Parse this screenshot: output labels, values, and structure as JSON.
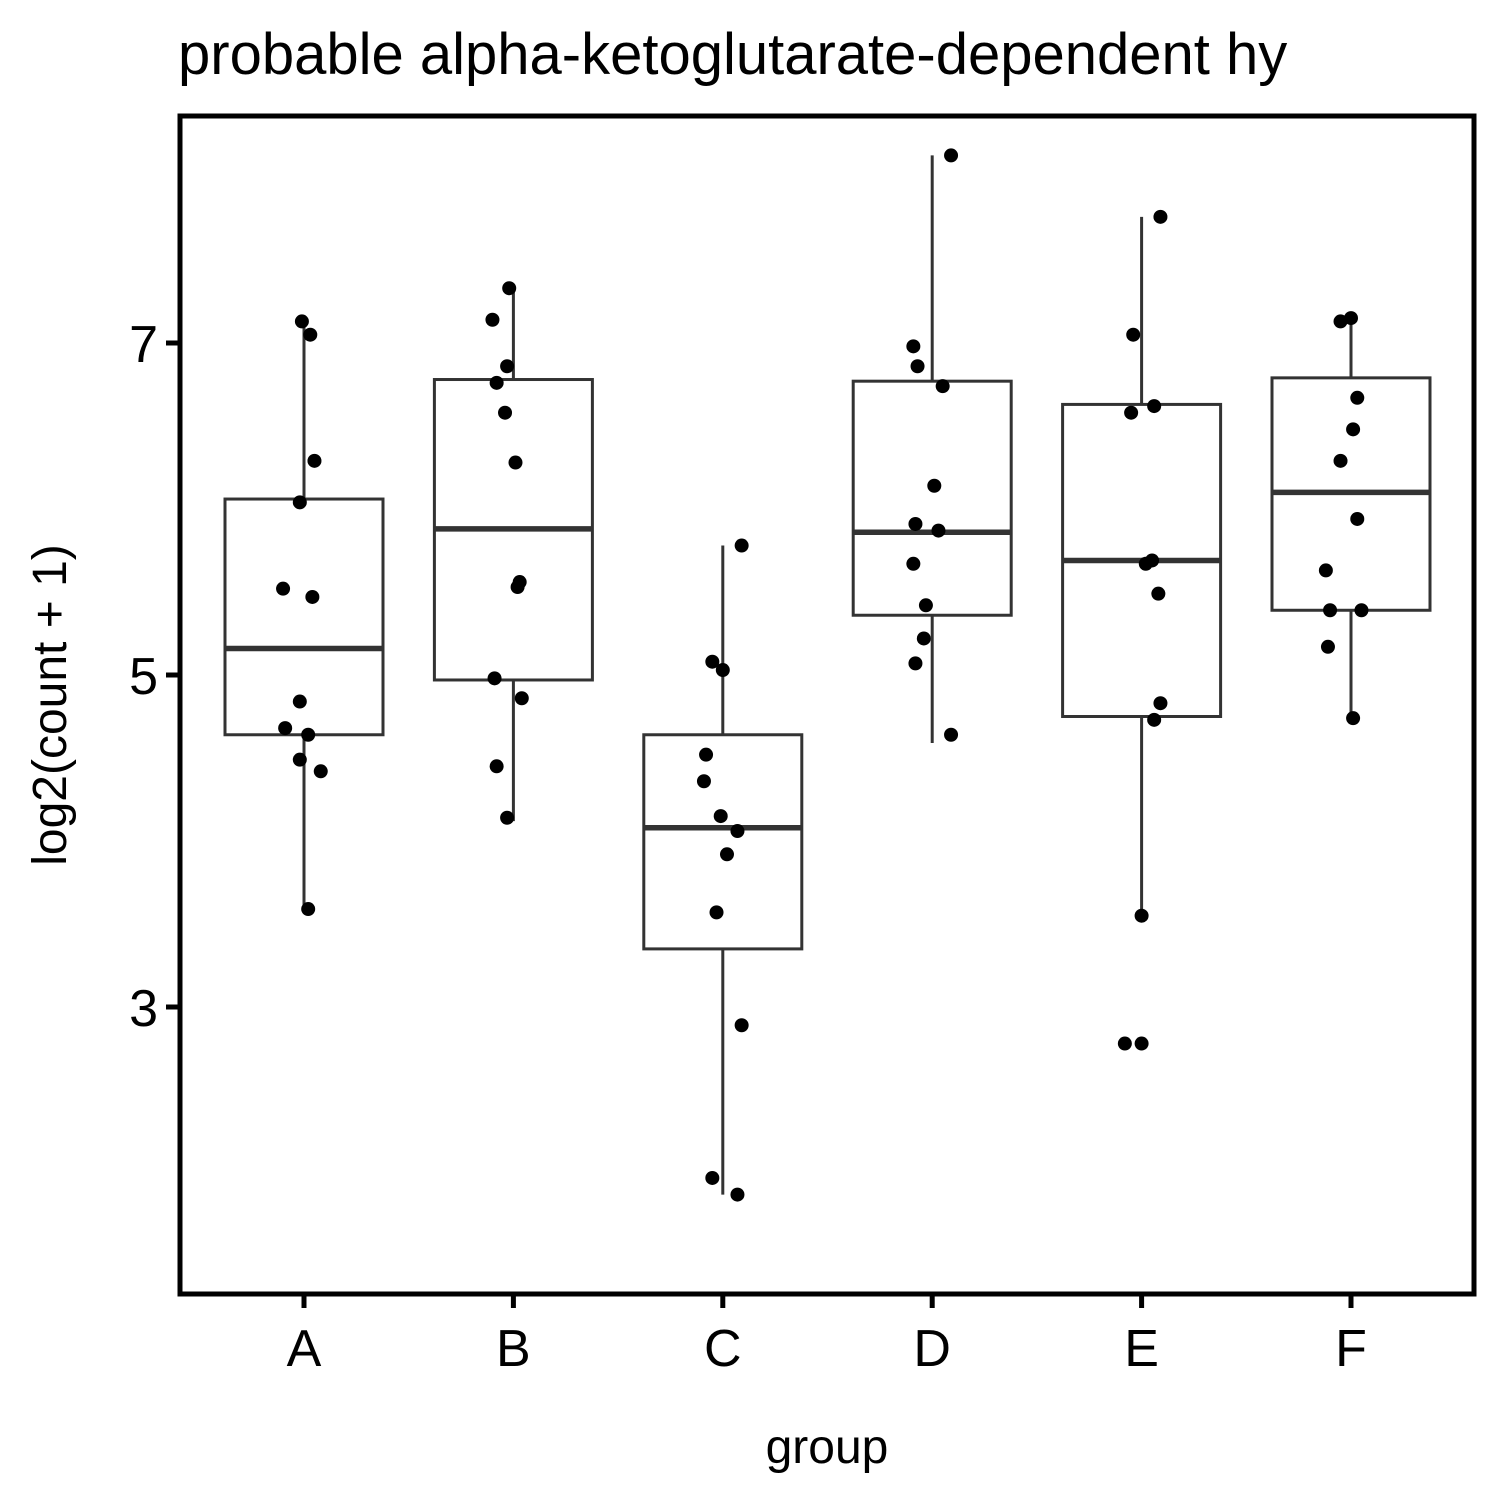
{
  "chart_data": {
    "type": "box",
    "title": "probable alpha-ketoglutarate-dependent hy",
    "xlabel": "group",
    "ylabel": "log2(count + 1)",
    "ylim": [
      1.9,
      8.6
    ],
    "yticks": [
      3,
      5,
      7
    ],
    "ytick_labels": [
      "3",
      "5",
      "7"
    ],
    "categories": [
      "A",
      "B",
      "C",
      "D",
      "E",
      "F"
    ],
    "grid": false,
    "legend": "none",
    "box_color": "#333333",
    "point_color": "#000000",
    "boxes": [
      {
        "group": "A",
        "whisker_low": 3.6,
        "q1": 4.64,
        "median": 5.16,
        "q3": 6.06,
        "whisker_high": 7.1
      },
      {
        "group": "B",
        "whisker_low": 4.12,
        "q1": 4.97,
        "median": 5.88,
        "q3": 6.78,
        "whisker_high": 7.34
      },
      {
        "group": "C",
        "whisker_low": 1.87,
        "q1": 3.35,
        "median": 4.08,
        "q3": 4.64,
        "whisker_high": 5.78
      },
      {
        "group": "D",
        "whisker_low": 4.59,
        "q1": 5.36,
        "median": 5.86,
        "q3": 6.77,
        "whisker_high": 8.13
      },
      {
        "group": "E",
        "whisker_low": 3.56,
        "q1": 4.75,
        "median": 5.69,
        "q3": 6.63,
        "whisker_high": 7.76
      },
      {
        "group": "F",
        "whisker_low": 4.75,
        "q1": 5.39,
        "median": 6.1,
        "q3": 6.79,
        "whisker_high": 7.15
      }
    ],
    "points": [
      {
        "group": "A",
        "jitter": -0.01,
        "y": 7.13
      },
      {
        "group": "A",
        "jitter": 0.03,
        "y": 7.05
      },
      {
        "group": "A",
        "jitter": 0.05,
        "y": 6.29
      },
      {
        "group": "A",
        "jitter": -0.02,
        "y": 6.04
      },
      {
        "group": "A",
        "jitter": -0.1,
        "y": 5.52
      },
      {
        "group": "A",
        "jitter": 0.04,
        "y": 5.47
      },
      {
        "group": "A",
        "jitter": -0.02,
        "y": 4.84
      },
      {
        "group": "A",
        "jitter": -0.09,
        "y": 4.68
      },
      {
        "group": "A",
        "jitter": 0.02,
        "y": 4.64
      },
      {
        "group": "A",
        "jitter": -0.02,
        "y": 4.49
      },
      {
        "group": "A",
        "jitter": 0.08,
        "y": 4.42
      },
      {
        "group": "A",
        "jitter": 0.02,
        "y": 3.59
      },
      {
        "group": "B",
        "jitter": -0.02,
        "y": 7.33
      },
      {
        "group": "B",
        "jitter": -0.1,
        "y": 7.14
      },
      {
        "group": "B",
        "jitter": -0.03,
        "y": 6.86
      },
      {
        "group": "B",
        "jitter": -0.08,
        "y": 6.76
      },
      {
        "group": "B",
        "jitter": -0.04,
        "y": 6.58
      },
      {
        "group": "B",
        "jitter": 0.01,
        "y": 6.28
      },
      {
        "group": "B",
        "jitter": 0.03,
        "y": 5.56
      },
      {
        "group": "B",
        "jitter": 0.02,
        "y": 5.53
      },
      {
        "group": "B",
        "jitter": -0.09,
        "y": 4.98
      },
      {
        "group": "B",
        "jitter": 0.04,
        "y": 4.86
      },
      {
        "group": "B",
        "jitter": -0.08,
        "y": 4.45
      },
      {
        "group": "B",
        "jitter": -0.03,
        "y": 4.14
      },
      {
        "group": "C",
        "jitter": 0.09,
        "y": 5.78
      },
      {
        "group": "C",
        "jitter": -0.05,
        "y": 5.08
      },
      {
        "group": "C",
        "jitter": 0.0,
        "y": 5.03
      },
      {
        "group": "C",
        "jitter": -0.08,
        "y": 4.52
      },
      {
        "group": "C",
        "jitter": -0.09,
        "y": 4.36
      },
      {
        "group": "C",
        "jitter": -0.01,
        "y": 4.15
      },
      {
        "group": "C",
        "jitter": 0.07,
        "y": 4.06
      },
      {
        "group": "C",
        "jitter": 0.02,
        "y": 3.92
      },
      {
        "group": "C",
        "jitter": -0.03,
        "y": 3.57
      },
      {
        "group": "C",
        "jitter": 0.09,
        "y": 2.89
      },
      {
        "group": "C",
        "jitter": -0.05,
        "y": 1.97
      },
      {
        "group": "C",
        "jitter": 0.07,
        "y": 1.87
      },
      {
        "group": "D",
        "jitter": 0.09,
        "y": 8.13
      },
      {
        "group": "D",
        "jitter": -0.09,
        "y": 6.98
      },
      {
        "group": "D",
        "jitter": -0.07,
        "y": 6.86
      },
      {
        "group": "D",
        "jitter": 0.05,
        "y": 6.74
      },
      {
        "group": "D",
        "jitter": 0.01,
        "y": 6.14
      },
      {
        "group": "D",
        "jitter": -0.08,
        "y": 5.91
      },
      {
        "group": "D",
        "jitter": 0.03,
        "y": 5.87
      },
      {
        "group": "D",
        "jitter": -0.09,
        "y": 5.67
      },
      {
        "group": "D",
        "jitter": -0.03,
        "y": 5.42
      },
      {
        "group": "D",
        "jitter": -0.04,
        "y": 5.22
      },
      {
        "group": "D",
        "jitter": -0.08,
        "y": 5.07
      },
      {
        "group": "D",
        "jitter": 0.09,
        "y": 4.64
      },
      {
        "group": "E",
        "jitter": 0.09,
        "y": 7.76
      },
      {
        "group": "E",
        "jitter": -0.04,
        "y": 7.05
      },
      {
        "group": "E",
        "jitter": -0.05,
        "y": 6.58
      },
      {
        "group": "E",
        "jitter": 0.06,
        "y": 6.62
      },
      {
        "group": "E",
        "jitter": 0.05,
        "y": 5.69
      },
      {
        "group": "E",
        "jitter": 0.02,
        "y": 5.67
      },
      {
        "group": "E",
        "jitter": 0.08,
        "y": 5.49
      },
      {
        "group": "E",
        "jitter": 0.09,
        "y": 4.83
      },
      {
        "group": "E",
        "jitter": 0.06,
        "y": 4.73
      },
      {
        "group": "E",
        "jitter": 0.0,
        "y": 3.55
      },
      {
        "group": "E",
        "jitter": -0.08,
        "y": 2.78
      },
      {
        "group": "E",
        "jitter": 0.0,
        "y": 2.78
      },
      {
        "group": "F",
        "jitter": 0.0,
        "y": 7.15
      },
      {
        "group": "F",
        "jitter": -0.05,
        "y": 7.13
      },
      {
        "group": "F",
        "jitter": 0.03,
        "y": 6.67
      },
      {
        "group": "F",
        "jitter": 0.01,
        "y": 6.48
      },
      {
        "group": "F",
        "jitter": -0.05,
        "y": 6.29
      },
      {
        "group": "F",
        "jitter": 0.03,
        "y": 5.94
      },
      {
        "group": "F",
        "jitter": -0.12,
        "y": 5.63
      },
      {
        "group": "F",
        "jitter": -0.1,
        "y": 5.39
      },
      {
        "group": "F",
        "jitter": 0.05,
        "y": 5.39
      },
      {
        "group": "F",
        "jitter": -0.11,
        "y": 5.17
      },
      {
        "group": "F",
        "jitter": 0.01,
        "y": 4.74
      }
    ]
  }
}
